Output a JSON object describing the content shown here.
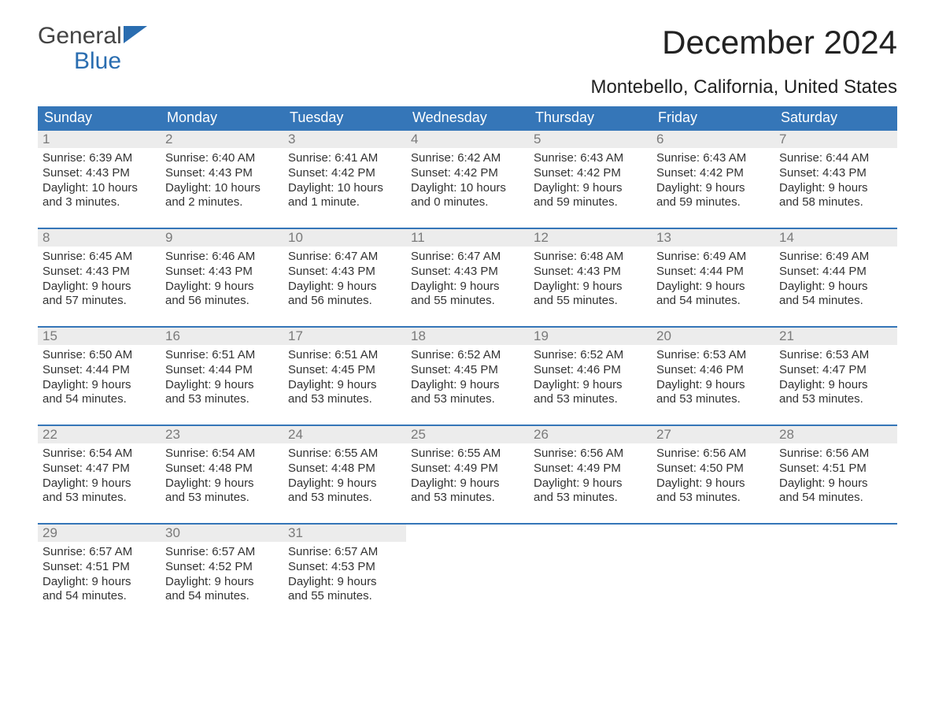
{
  "logo": {
    "general": "General",
    "blue": "Blue"
  },
  "title": "December 2024",
  "location": "Montebello, California, United States",
  "colors": {
    "header_bg": "#3576b8",
    "header_text": "#ffffff",
    "daynum_bg": "#ececec",
    "daynum_text": "#7a7a7a",
    "body_text": "#333333",
    "week_border": "#3576b8",
    "background": "#ffffff",
    "logo_blue": "#2a6db0",
    "logo_gray": "#444444"
  },
  "day_names": [
    "Sunday",
    "Monday",
    "Tuesday",
    "Wednesday",
    "Thursday",
    "Friday",
    "Saturday"
  ],
  "weeks": [
    [
      {
        "num": "1",
        "sunrise": "Sunrise: 6:39 AM",
        "sunset": "Sunset: 4:43 PM",
        "dl1": "Daylight: 10 hours",
        "dl2": "and 3 minutes."
      },
      {
        "num": "2",
        "sunrise": "Sunrise: 6:40 AM",
        "sunset": "Sunset: 4:43 PM",
        "dl1": "Daylight: 10 hours",
        "dl2": "and 2 minutes."
      },
      {
        "num": "3",
        "sunrise": "Sunrise: 6:41 AM",
        "sunset": "Sunset: 4:42 PM",
        "dl1": "Daylight: 10 hours",
        "dl2": "and 1 minute."
      },
      {
        "num": "4",
        "sunrise": "Sunrise: 6:42 AM",
        "sunset": "Sunset: 4:42 PM",
        "dl1": "Daylight: 10 hours",
        "dl2": "and 0 minutes."
      },
      {
        "num": "5",
        "sunrise": "Sunrise: 6:43 AM",
        "sunset": "Sunset: 4:42 PM",
        "dl1": "Daylight: 9 hours",
        "dl2": "and 59 minutes."
      },
      {
        "num": "6",
        "sunrise": "Sunrise: 6:43 AM",
        "sunset": "Sunset: 4:42 PM",
        "dl1": "Daylight: 9 hours",
        "dl2": "and 59 minutes."
      },
      {
        "num": "7",
        "sunrise": "Sunrise: 6:44 AM",
        "sunset": "Sunset: 4:43 PM",
        "dl1": "Daylight: 9 hours",
        "dl2": "and 58 minutes."
      }
    ],
    [
      {
        "num": "8",
        "sunrise": "Sunrise: 6:45 AM",
        "sunset": "Sunset: 4:43 PM",
        "dl1": "Daylight: 9 hours",
        "dl2": "and 57 minutes."
      },
      {
        "num": "9",
        "sunrise": "Sunrise: 6:46 AM",
        "sunset": "Sunset: 4:43 PM",
        "dl1": "Daylight: 9 hours",
        "dl2": "and 56 minutes."
      },
      {
        "num": "10",
        "sunrise": "Sunrise: 6:47 AM",
        "sunset": "Sunset: 4:43 PM",
        "dl1": "Daylight: 9 hours",
        "dl2": "and 56 minutes."
      },
      {
        "num": "11",
        "sunrise": "Sunrise: 6:47 AM",
        "sunset": "Sunset: 4:43 PM",
        "dl1": "Daylight: 9 hours",
        "dl2": "and 55 minutes."
      },
      {
        "num": "12",
        "sunrise": "Sunrise: 6:48 AM",
        "sunset": "Sunset: 4:43 PM",
        "dl1": "Daylight: 9 hours",
        "dl2": "and 55 minutes."
      },
      {
        "num": "13",
        "sunrise": "Sunrise: 6:49 AM",
        "sunset": "Sunset: 4:44 PM",
        "dl1": "Daylight: 9 hours",
        "dl2": "and 54 minutes."
      },
      {
        "num": "14",
        "sunrise": "Sunrise: 6:49 AM",
        "sunset": "Sunset: 4:44 PM",
        "dl1": "Daylight: 9 hours",
        "dl2": "and 54 minutes."
      }
    ],
    [
      {
        "num": "15",
        "sunrise": "Sunrise: 6:50 AM",
        "sunset": "Sunset: 4:44 PM",
        "dl1": "Daylight: 9 hours",
        "dl2": "and 54 minutes."
      },
      {
        "num": "16",
        "sunrise": "Sunrise: 6:51 AM",
        "sunset": "Sunset: 4:44 PM",
        "dl1": "Daylight: 9 hours",
        "dl2": "and 53 minutes."
      },
      {
        "num": "17",
        "sunrise": "Sunrise: 6:51 AM",
        "sunset": "Sunset: 4:45 PM",
        "dl1": "Daylight: 9 hours",
        "dl2": "and 53 minutes."
      },
      {
        "num": "18",
        "sunrise": "Sunrise: 6:52 AM",
        "sunset": "Sunset: 4:45 PM",
        "dl1": "Daylight: 9 hours",
        "dl2": "and 53 minutes."
      },
      {
        "num": "19",
        "sunrise": "Sunrise: 6:52 AM",
        "sunset": "Sunset: 4:46 PM",
        "dl1": "Daylight: 9 hours",
        "dl2": "and 53 minutes."
      },
      {
        "num": "20",
        "sunrise": "Sunrise: 6:53 AM",
        "sunset": "Sunset: 4:46 PM",
        "dl1": "Daylight: 9 hours",
        "dl2": "and 53 minutes."
      },
      {
        "num": "21",
        "sunrise": "Sunrise: 6:53 AM",
        "sunset": "Sunset: 4:47 PM",
        "dl1": "Daylight: 9 hours",
        "dl2": "and 53 minutes."
      }
    ],
    [
      {
        "num": "22",
        "sunrise": "Sunrise: 6:54 AM",
        "sunset": "Sunset: 4:47 PM",
        "dl1": "Daylight: 9 hours",
        "dl2": "and 53 minutes."
      },
      {
        "num": "23",
        "sunrise": "Sunrise: 6:54 AM",
        "sunset": "Sunset: 4:48 PM",
        "dl1": "Daylight: 9 hours",
        "dl2": "and 53 minutes."
      },
      {
        "num": "24",
        "sunrise": "Sunrise: 6:55 AM",
        "sunset": "Sunset: 4:48 PM",
        "dl1": "Daylight: 9 hours",
        "dl2": "and 53 minutes."
      },
      {
        "num": "25",
        "sunrise": "Sunrise: 6:55 AM",
        "sunset": "Sunset: 4:49 PM",
        "dl1": "Daylight: 9 hours",
        "dl2": "and 53 minutes."
      },
      {
        "num": "26",
        "sunrise": "Sunrise: 6:56 AM",
        "sunset": "Sunset: 4:49 PM",
        "dl1": "Daylight: 9 hours",
        "dl2": "and 53 minutes."
      },
      {
        "num": "27",
        "sunrise": "Sunrise: 6:56 AM",
        "sunset": "Sunset: 4:50 PM",
        "dl1": "Daylight: 9 hours",
        "dl2": "and 53 minutes."
      },
      {
        "num": "28",
        "sunrise": "Sunrise: 6:56 AM",
        "sunset": "Sunset: 4:51 PM",
        "dl1": "Daylight: 9 hours",
        "dl2": "and 54 minutes."
      }
    ],
    [
      {
        "num": "29",
        "sunrise": "Sunrise: 6:57 AM",
        "sunset": "Sunset: 4:51 PM",
        "dl1": "Daylight: 9 hours",
        "dl2": "and 54 minutes."
      },
      {
        "num": "30",
        "sunrise": "Sunrise: 6:57 AM",
        "sunset": "Sunset: 4:52 PM",
        "dl1": "Daylight: 9 hours",
        "dl2": "and 54 minutes."
      },
      {
        "num": "31",
        "sunrise": "Sunrise: 6:57 AM",
        "sunset": "Sunset: 4:53 PM",
        "dl1": "Daylight: 9 hours",
        "dl2": "and 55 minutes."
      },
      {
        "empty": true
      },
      {
        "empty": true
      },
      {
        "empty": true
      },
      {
        "empty": true
      }
    ]
  ]
}
